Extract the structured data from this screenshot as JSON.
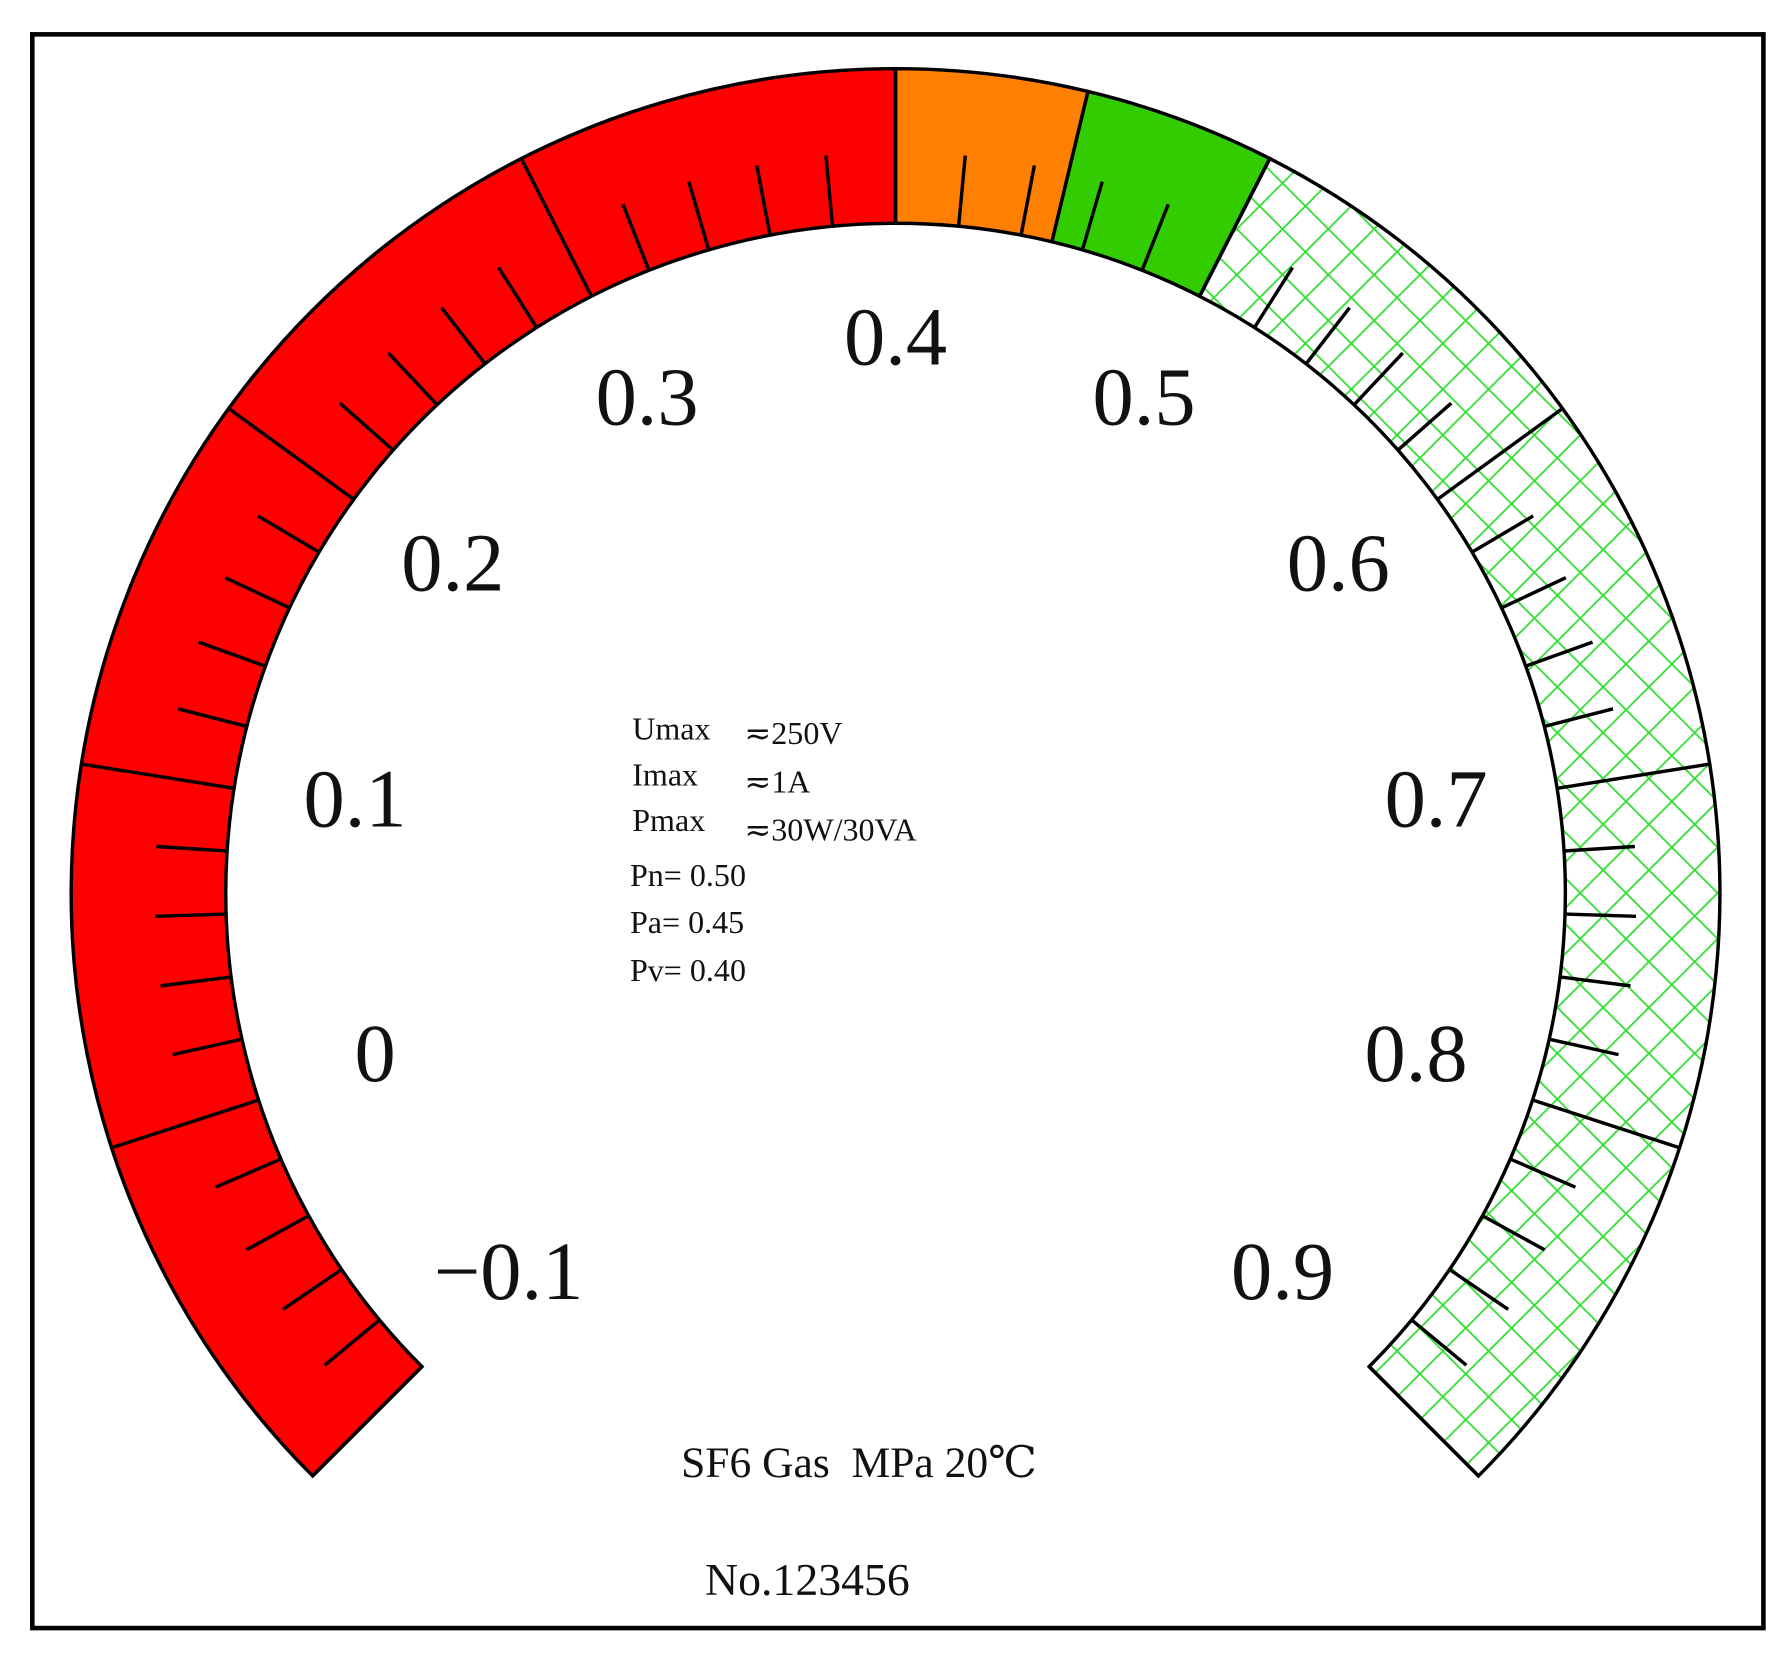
{
  "gauge": {
    "ticks": [
      {
        "value": -0.1,
        "label": "−0.1"
      },
      0,
      0.1,
      0.2,
      0.3,
      0.4,
      0.5,
      0.6,
      0.7,
      0.8,
      0.9
    ],
    "zones": [
      {
        "from": -0.1,
        "to": 0.4,
        "color": "#ff0000"
      },
      {
        "from": 0.4,
        "to": 0.45,
        "color": "#ff8000"
      },
      {
        "from": 0.45,
        "to": 0.5,
        "color": "#33cc00"
      },
      {
        "from": 0.5,
        "to": 0.9,
        "color": "#33dd33",
        "pattern": "crosshatch"
      }
    ]
  },
  "ratings": [
    {
      "name": "Umax",
      "value": "≂250V"
    },
    {
      "name": "Imax",
      "value": "≂1A"
    },
    {
      "name": "Pmax",
      "value": "≂30W/30VA"
    }
  ],
  "pressures": [
    "Pn= 0.50",
    "Pa= 0.45",
    "Pv= 0.40"
  ],
  "unit_line": "SF6 Gas  MPa 20℃",
  "serial": "No.123456"
}
